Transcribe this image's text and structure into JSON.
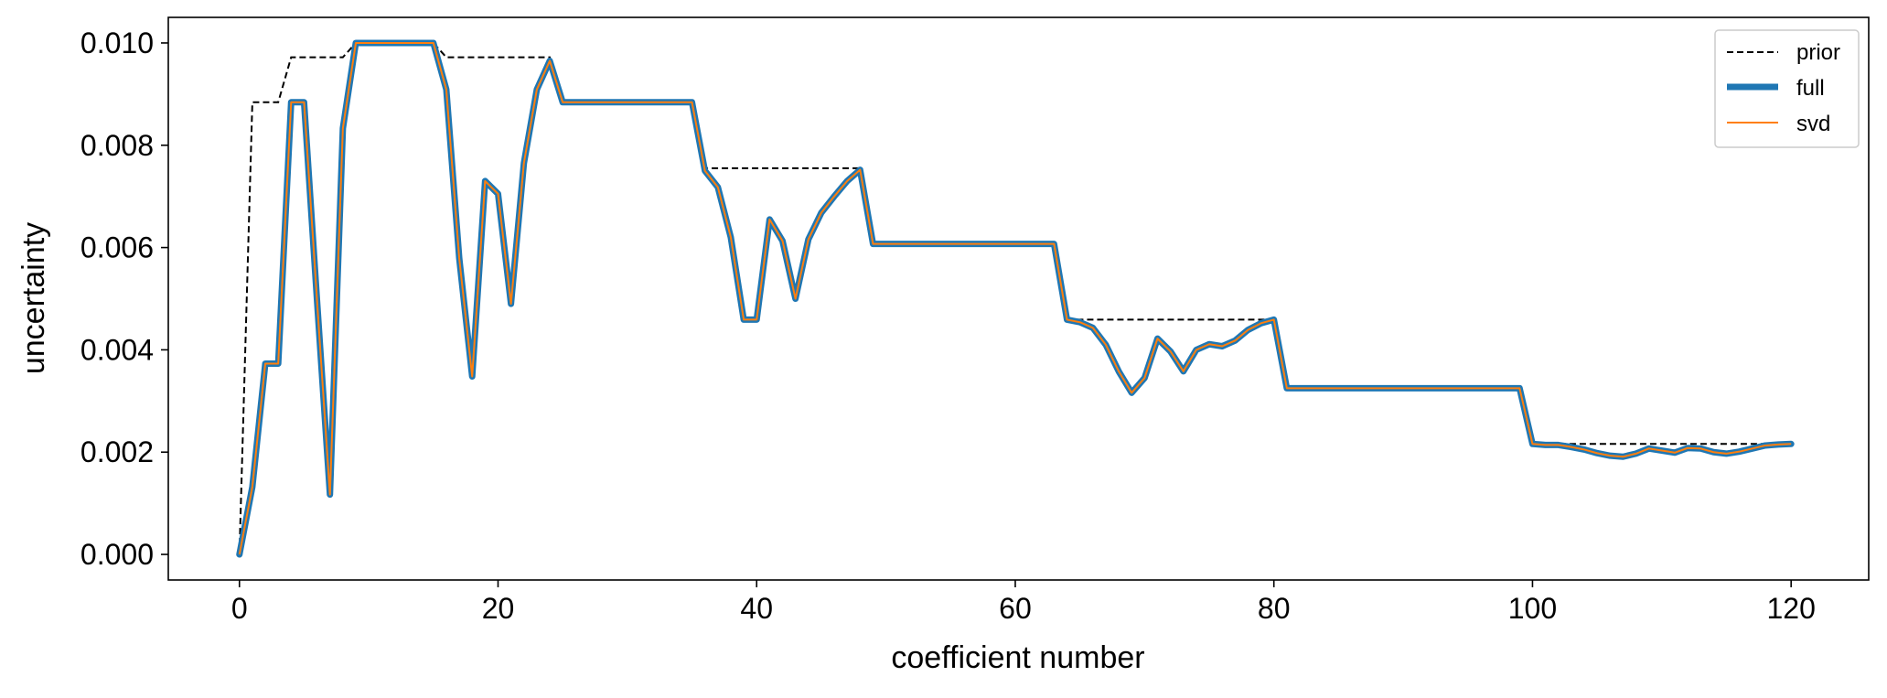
{
  "chart_data": {
    "type": "line",
    "title": "",
    "xlabel": "coefficient number",
    "ylabel": "uncertainty",
    "xlim": [
      -5.5,
      126
    ],
    "ylim": [
      -0.0005,
      0.0105
    ],
    "xticks": [
      0,
      20,
      40,
      60,
      80,
      100,
      120
    ],
    "xtick_labels": [
      "0",
      "20",
      "40",
      "60",
      "80",
      "100",
      "120"
    ],
    "yticks": [
      0.0,
      0.002,
      0.004,
      0.006,
      0.008,
      0.01
    ],
    "ytick_labels": [
      "0.000",
      "0.002",
      "0.004",
      "0.006",
      "0.008",
      "0.010"
    ],
    "grid": false,
    "legend_position": "top-right",
    "series": [
      {
        "name": "prior",
        "color": "#000000",
        "style": "dashed",
        "x": [
          0,
          1,
          2,
          3,
          4,
          5,
          6,
          7,
          8,
          9,
          10,
          11,
          12,
          13,
          14,
          15,
          16,
          17,
          18,
          19,
          20,
          21,
          22,
          23,
          24,
          25,
          26,
          27,
          28,
          29,
          30,
          31,
          32,
          33,
          34,
          35,
          36,
          37,
          38,
          39,
          40,
          41,
          42,
          43,
          44,
          45,
          46,
          47,
          48,
          49,
          50,
          51,
          52,
          53,
          54,
          55,
          56,
          57,
          58,
          59,
          60,
          61,
          62,
          63,
          64,
          65,
          66,
          67,
          68,
          69,
          70,
          71,
          72,
          73,
          74,
          75,
          76,
          77,
          78,
          79,
          80,
          81,
          82,
          83,
          84,
          85,
          86,
          87,
          88,
          89,
          90,
          91,
          92,
          93,
          94,
          95,
          96,
          97,
          98,
          99,
          100,
          101,
          102,
          103,
          104,
          105,
          106,
          107,
          108,
          109,
          110,
          111,
          112,
          113,
          114,
          115,
          116,
          117,
          118,
          119,
          120
        ],
        "y": [
          0.0,
          0.00884,
          0.00884,
          0.00884,
          0.00972,
          0.00972,
          0.00972,
          0.00972,
          0.00972,
          0.01,
          0.01,
          0.01,
          0.01,
          0.01,
          0.01,
          0.01,
          0.00972,
          0.00972,
          0.00972,
          0.00972,
          0.00972,
          0.00972,
          0.00972,
          0.00972,
          0.00972,
          0.00884,
          0.00884,
          0.00884,
          0.00884,
          0.00884,
          0.00884,
          0.00884,
          0.00884,
          0.00884,
          0.00884,
          0.00884,
          0.00755,
          0.00755,
          0.00755,
          0.00755,
          0.00755,
          0.00755,
          0.00755,
          0.00755,
          0.00755,
          0.00755,
          0.00755,
          0.00755,
          0.00755,
          0.00607,
          0.00607,
          0.00607,
          0.00607,
          0.00607,
          0.00607,
          0.00607,
          0.00607,
          0.00607,
          0.00607,
          0.00607,
          0.00607,
          0.00607,
          0.00607,
          0.00607,
          0.00459,
          0.00459,
          0.00459,
          0.00459,
          0.00459,
          0.00459,
          0.00459,
          0.00459,
          0.00459,
          0.00459,
          0.00459,
          0.00459,
          0.00459,
          0.00459,
          0.00459,
          0.00459,
          0.00459,
          0.00325,
          0.00325,
          0.00325,
          0.00325,
          0.00325,
          0.00325,
          0.00325,
          0.00325,
          0.00325,
          0.00325,
          0.00325,
          0.00325,
          0.00325,
          0.00325,
          0.00325,
          0.00325,
          0.00325,
          0.00325,
          0.00325,
          0.00216,
          0.00216,
          0.00216,
          0.00216,
          0.00216,
          0.00216,
          0.00216,
          0.00216,
          0.00216,
          0.00216,
          0.00216,
          0.00216,
          0.00216,
          0.00216,
          0.00216,
          0.00216,
          0.00216,
          0.00216,
          0.00216,
          0.00216,
          0.00216
        ]
      },
      {
        "name": "full",
        "color": "#1f77b4",
        "style": "solid-thick",
        "x": [
          0,
          1,
          2,
          3,
          4,
          5,
          6,
          7,
          8,
          9,
          10,
          11,
          12,
          13,
          14,
          15,
          16,
          17,
          18,
          19,
          20,
          21,
          22,
          23,
          24,
          25,
          26,
          27,
          28,
          29,
          30,
          31,
          32,
          33,
          34,
          35,
          36,
          37,
          38,
          39,
          40,
          41,
          42,
          43,
          44,
          45,
          46,
          47,
          48,
          49,
          50,
          51,
          52,
          53,
          54,
          55,
          56,
          57,
          58,
          59,
          60,
          61,
          62,
          63,
          64,
          65,
          66,
          67,
          68,
          69,
          70,
          71,
          72,
          73,
          74,
          75,
          76,
          77,
          78,
          79,
          80,
          81,
          82,
          83,
          84,
          85,
          86,
          87,
          88,
          89,
          90,
          91,
          92,
          93,
          94,
          95,
          96,
          97,
          98,
          99,
          100,
          101,
          102,
          103,
          104,
          105,
          106,
          107,
          108,
          109,
          110,
          111,
          112,
          113,
          114,
          115,
          116,
          117,
          118,
          119,
          120
        ],
        "y": [
          0.0,
          0.00132,
          0.00373,
          0.00373,
          0.00884,
          0.00884,
          0.00497,
          0.00117,
          0.00833,
          0.01,
          0.01,
          0.01,
          0.01,
          0.01,
          0.01,
          0.01,
          0.00909,
          0.00579,
          0.00348,
          0.0073,
          0.00705,
          0.0049,
          0.00765,
          0.00909,
          0.00965,
          0.00884,
          0.00884,
          0.00884,
          0.00884,
          0.00884,
          0.00884,
          0.00884,
          0.00884,
          0.00884,
          0.00884,
          0.00884,
          0.0075,
          0.00718,
          0.0062,
          0.00459,
          0.00459,
          0.00655,
          0.00613,
          0.005,
          0.00616,
          0.00668,
          0.007,
          0.0073,
          0.00752,
          0.00607,
          0.00607,
          0.00607,
          0.00607,
          0.00607,
          0.00607,
          0.00607,
          0.00607,
          0.00607,
          0.00607,
          0.00607,
          0.00607,
          0.00607,
          0.00607,
          0.00607,
          0.00459,
          0.00454,
          0.00443,
          0.0041,
          0.00358,
          0.00316,
          0.00345,
          0.00422,
          0.00397,
          0.00358,
          0.004,
          0.00411,
          0.00407,
          0.00418,
          0.00439,
          0.00452,
          0.00459,
          0.00325,
          0.00325,
          0.00325,
          0.00325,
          0.00325,
          0.00325,
          0.00325,
          0.00325,
          0.00325,
          0.00325,
          0.00325,
          0.00325,
          0.00325,
          0.00325,
          0.00325,
          0.00325,
          0.00325,
          0.00325,
          0.00325,
          0.00216,
          0.00214,
          0.00214,
          0.0021,
          0.00205,
          0.00198,
          0.00193,
          0.00191,
          0.00197,
          0.00207,
          0.00203,
          0.00199,
          0.00208,
          0.00207,
          0.002,
          0.00197,
          0.00201,
          0.00207,
          0.00213,
          0.00215,
          0.00216
        ]
      },
      {
        "name": "svd",
        "color": "#ff7f0e",
        "style": "solid-thin",
        "x": [
          0,
          1,
          2,
          3,
          4,
          5,
          6,
          7,
          8,
          9,
          10,
          11,
          12,
          13,
          14,
          15,
          16,
          17,
          18,
          19,
          20,
          21,
          22,
          23,
          24,
          25,
          26,
          27,
          28,
          29,
          30,
          31,
          32,
          33,
          34,
          35,
          36,
          37,
          38,
          39,
          40,
          41,
          42,
          43,
          44,
          45,
          46,
          47,
          48,
          49,
          50,
          51,
          52,
          53,
          54,
          55,
          56,
          57,
          58,
          59,
          60,
          61,
          62,
          63,
          64,
          65,
          66,
          67,
          68,
          69,
          70,
          71,
          72,
          73,
          74,
          75,
          76,
          77,
          78,
          79,
          80,
          81,
          82,
          83,
          84,
          85,
          86,
          87,
          88,
          89,
          90,
          91,
          92,
          93,
          94,
          95,
          96,
          97,
          98,
          99,
          100,
          101,
          102,
          103,
          104,
          105,
          106,
          107,
          108,
          109,
          110,
          111,
          112,
          113,
          114,
          115,
          116,
          117,
          118,
          119,
          120
        ],
        "y": [
          0.0,
          0.00132,
          0.00373,
          0.00373,
          0.00884,
          0.00884,
          0.00497,
          0.00117,
          0.00833,
          0.01,
          0.01,
          0.01,
          0.01,
          0.01,
          0.01,
          0.01,
          0.00909,
          0.00579,
          0.00348,
          0.0073,
          0.00705,
          0.0049,
          0.00765,
          0.00909,
          0.00965,
          0.00884,
          0.00884,
          0.00884,
          0.00884,
          0.00884,
          0.00884,
          0.00884,
          0.00884,
          0.00884,
          0.00884,
          0.00884,
          0.0075,
          0.00718,
          0.0062,
          0.00459,
          0.00459,
          0.00655,
          0.00613,
          0.005,
          0.00616,
          0.00668,
          0.007,
          0.0073,
          0.00752,
          0.00607,
          0.00607,
          0.00607,
          0.00607,
          0.00607,
          0.00607,
          0.00607,
          0.00607,
          0.00607,
          0.00607,
          0.00607,
          0.00607,
          0.00607,
          0.00607,
          0.00607,
          0.00459,
          0.00454,
          0.00443,
          0.0041,
          0.00358,
          0.00316,
          0.00345,
          0.00422,
          0.00397,
          0.00358,
          0.004,
          0.00411,
          0.00407,
          0.00418,
          0.00439,
          0.00452,
          0.00459,
          0.00325,
          0.00325,
          0.00325,
          0.00325,
          0.00325,
          0.00325,
          0.00325,
          0.00325,
          0.00325,
          0.00325,
          0.00325,
          0.00325,
          0.00325,
          0.00325,
          0.00325,
          0.00325,
          0.00325,
          0.00325,
          0.00325,
          0.00216,
          0.00214,
          0.00214,
          0.0021,
          0.00205,
          0.00198,
          0.00193,
          0.00191,
          0.00197,
          0.00207,
          0.00203,
          0.00199,
          0.00208,
          0.00207,
          0.002,
          0.00197,
          0.00201,
          0.00207,
          0.00213,
          0.00215,
          0.00216
        ]
      }
    ]
  }
}
